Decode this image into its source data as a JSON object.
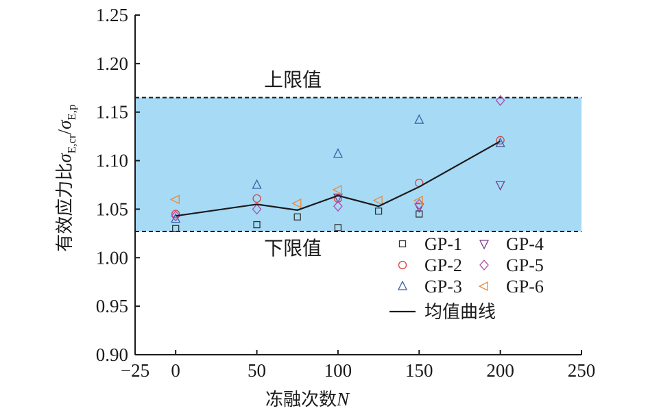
{
  "chart_data": {
    "type": "scatter",
    "xlabel": "冻融次数",
    "xlabel_var": "N",
    "ylabel": "有效应力比",
    "ylabel_expr": "σE,cr/σE,p",
    "xlim": [
      -25,
      250
    ],
    "ylim": [
      0.9,
      1.25
    ],
    "x_ticks": [
      "−25",
      "0",
      "50",
      "100",
      "150",
      "200",
      "250"
    ],
    "y_ticks": [
      "0.90",
      "0.95",
      "1.00",
      "1.05",
      "1.10",
      "1.15",
      "1.20",
      "1.25"
    ],
    "band": {
      "upper": 1.165,
      "lower": 1.027,
      "upper_label": "上限值",
      "lower_label": "下限值",
      "color": "#a6daf5"
    },
    "series": [
      {
        "name": "GP-1",
        "marker": "square",
        "color": "#333333",
        "x": [
          0,
          50,
          75,
          100,
          125,
          150
        ],
        "y": [
          1.03,
          1.034,
          1.042,
          1.031,
          1.048,
          1.045
        ]
      },
      {
        "name": "GP-2",
        "marker": "circle",
        "color": "#e0403a",
        "x": [
          0,
          50,
          100,
          150,
          200
        ],
        "y": [
          1.045,
          1.061,
          1.061,
          1.077,
          1.121
        ]
      },
      {
        "name": "GP-3",
        "marker": "triangle-up",
        "color": "#3a5fa8",
        "x": [
          0,
          50,
          100,
          150,
          200
        ],
        "y": [
          1.04,
          1.075,
          1.107,
          1.142,
          1.118
        ]
      },
      {
        "name": "GP-4",
        "marker": "triangle-down",
        "color": "#7a3a8c",
        "x": [
          100,
          150,
          200
        ],
        "y": [
          1.062,
          1.052,
          1.075
        ]
      },
      {
        "name": "GP-5",
        "marker": "diamond",
        "color": "#b04ab0",
        "x": [
          0,
          50,
          100,
          150,
          200
        ],
        "y": [
          1.043,
          1.05,
          1.053,
          1.055,
          1.162
        ]
      },
      {
        "name": "GP-6",
        "marker": "triangle-left",
        "color": "#e88a3a",
        "x": [
          0,
          75,
          100,
          125,
          150
        ],
        "y": [
          1.06,
          1.056,
          1.07,
          1.059,
          1.059
        ]
      }
    ],
    "mean_curve": {
      "name": "均值曲线",
      "color": "#1a1a1a",
      "x": [
        0,
        50,
        75,
        100,
        125,
        150,
        200
      ],
      "y": [
        1.043,
        1.055,
        1.049,
        1.064,
        1.053,
        1.073,
        1.12
      ]
    },
    "legend_position": "bottom-right",
    "grid": false
  }
}
